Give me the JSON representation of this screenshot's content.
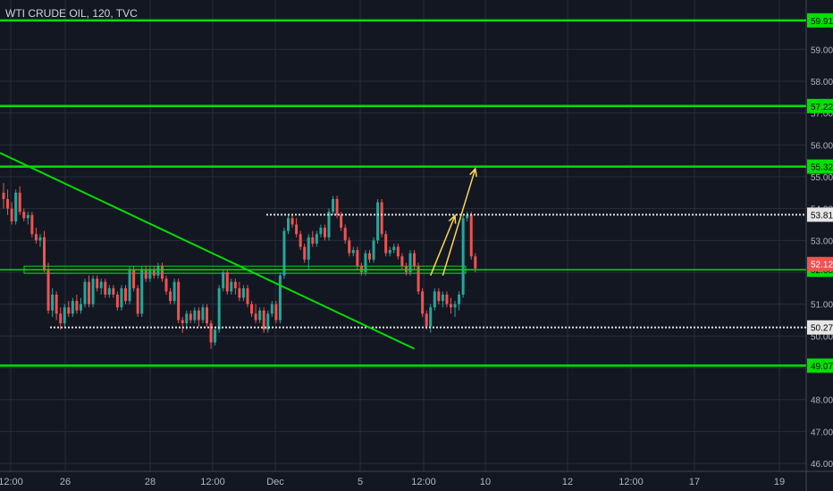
{
  "header": {
    "title": "WTI CRUDE OIL, 120, TVC"
  },
  "colors": {
    "background": "#131722",
    "grid": "#2a2e39",
    "up": "#26a69a",
    "down": "#ef5350",
    "level_line": "#00e000",
    "level_label_bg": "#00e000",
    "dotted_line": "#e0e0e0",
    "current_price_bg": "#ef5350",
    "arrow": "#ffd54f",
    "axis_text": "#b2b5be"
  },
  "chart_data": {
    "type": "candlestick",
    "title": "WTI CRUDE OIL, 120, TVC",
    "ylim": [
      45.75,
      60.55
    ],
    "y_ticks": [
      46.0,
      47.0,
      48.0,
      49.0,
      50.0,
      51.0,
      52.0,
      53.0,
      54.0,
      55.0,
      56.0,
      57.0,
      58.0,
      59.0
    ],
    "x_ticks": [
      "12:00",
      "26",
      "28",
      "12:00",
      "Dec",
      "5",
      "12:00",
      "10",
      "12",
      "12:00",
      "17",
      "19"
    ],
    "horizontal_levels": [
      {
        "value": 59.91,
        "label": "59.91",
        "style": "solid"
      },
      {
        "value": 57.22,
        "label": "57.22",
        "style": "solid"
      },
      {
        "value": 55.32,
        "label": "55.32",
        "style": "solid"
      },
      {
        "value": 49.07,
        "label": "49.07",
        "style": "solid"
      },
      {
        "value": 52.08,
        "label": "52.08",
        "style": "support-zone"
      },
      {
        "value": 53.81,
        "label": "53.81",
        "style": "dotted"
      },
      {
        "value": 50.27,
        "label": "50.27",
        "style": "dotted"
      }
    ],
    "current_price": {
      "value": 52.12,
      "label": "52.12"
    },
    "trendline": {
      "from": {
        "candle": 0,
        "price": 55.75
      },
      "to": {
        "candle": 101,
        "price": 49.6
      }
    },
    "projection_arrows": [
      {
        "from": {
          "candle": 105,
          "price": 51.9
        },
        "to": {
          "candle": 111,
          "price": 53.78
        }
      },
      {
        "from": {
          "candle": 108,
          "price": 51.9
        },
        "to": {
          "candle": 116,
          "price": 55.25
        }
      }
    ],
    "candles": [
      [
        54.5,
        54.8,
        54.0,
        54.3
      ],
      [
        54.3,
        54.6,
        53.8,
        54.0
      ],
      [
        54.0,
        54.2,
        53.5,
        53.6
      ],
      [
        53.6,
        54.6,
        53.5,
        54.5
      ],
      [
        54.5,
        54.7,
        53.8,
        53.9
      ],
      [
        53.9,
        54.0,
        53.6,
        53.7
      ],
      [
        53.7,
        53.9,
        53.5,
        53.8
      ],
      [
        53.8,
        53.9,
        53.1,
        53.2
      ],
      [
        53.2,
        53.4,
        52.9,
        53.0
      ],
      [
        53.0,
        53.2,
        52.8,
        53.1
      ],
      [
        53.1,
        53.3,
        52.0,
        52.1
      ],
      [
        52.1,
        52.3,
        50.7,
        50.8
      ],
      [
        50.8,
        51.5,
        50.6,
        51.3
      ],
      [
        51.3,
        51.4,
        50.5,
        50.7
      ],
      [
        50.7,
        50.9,
        50.2,
        50.4
      ],
      [
        50.4,
        51.0,
        50.3,
        50.9
      ],
      [
        50.9,
        51.1,
        50.6,
        50.7
      ],
      [
        50.7,
        51.2,
        50.6,
        51.1
      ],
      [
        51.1,
        51.3,
        50.7,
        50.8
      ],
      [
        50.8,
        51.2,
        50.7,
        51.0
      ],
      [
        51.0,
        51.8,
        50.9,
        51.7
      ],
      [
        51.7,
        51.9,
        50.9,
        51.0
      ],
      [
        51.0,
        51.9,
        50.9,
        51.8
      ],
      [
        51.8,
        51.9,
        51.4,
        51.5
      ],
      [
        51.5,
        51.8,
        51.3,
        51.7
      ],
      [
        51.7,
        51.8,
        51.2,
        51.3
      ],
      [
        51.3,
        51.6,
        51.2,
        51.5
      ],
      [
        51.5,
        51.6,
        51.2,
        51.3
      ],
      [
        51.3,
        51.4,
        50.8,
        50.9
      ],
      [
        50.9,
        51.6,
        50.8,
        51.5
      ],
      [
        51.5,
        51.6,
        51.0,
        51.1
      ],
      [
        51.1,
        52.2,
        51.0,
        52.1
      ],
      [
        52.1,
        52.2,
        51.4,
        51.5
      ],
      [
        51.5,
        51.6,
        50.6,
        50.7
      ],
      [
        50.7,
        52.2,
        50.6,
        52.1
      ],
      [
        52.1,
        52.2,
        51.7,
        51.8
      ],
      [
        51.8,
        52.2,
        51.7,
        52.1
      ],
      [
        52.1,
        52.2,
        51.8,
        51.9
      ],
      [
        51.9,
        52.3,
        51.8,
        52.2
      ],
      [
        52.2,
        52.3,
        51.7,
        51.8
      ],
      [
        51.8,
        51.9,
        51.3,
        51.4
      ],
      [
        51.4,
        51.5,
        51.0,
        51.1
      ],
      [
        51.1,
        51.8,
        51.0,
        51.7
      ],
      [
        51.7,
        51.8,
        50.4,
        50.5
      ],
      [
        50.5,
        50.6,
        50.1,
        50.4
      ],
      [
        50.4,
        50.8,
        50.2,
        50.7
      ],
      [
        50.7,
        50.8,
        50.4,
        50.5
      ],
      [
        50.5,
        50.9,
        50.4,
        50.8
      ],
      [
        50.8,
        50.9,
        50.3,
        50.5
      ],
      [
        50.5,
        51.0,
        50.4,
        50.9
      ],
      [
        50.9,
        51.0,
        50.3,
        50.4
      ],
      [
        50.4,
        50.5,
        49.6,
        49.8
      ],
      [
        49.8,
        50.3,
        49.7,
        50.2
      ],
      [
        50.2,
        51.6,
        50.1,
        51.5
      ],
      [
        51.5,
        52.1,
        51.4,
        52.0
      ],
      [
        52.0,
        52.1,
        51.3,
        51.4
      ],
      [
        51.4,
        51.8,
        51.3,
        51.7
      ],
      [
        51.7,
        51.8,
        51.3,
        51.5
      ],
      [
        51.5,
        51.7,
        51.1,
        51.2
      ],
      [
        51.2,
        51.6,
        51.1,
        51.5
      ],
      [
        51.5,
        51.6,
        50.9,
        51.0
      ],
      [
        51.0,
        51.1,
        50.6,
        50.7
      ],
      [
        50.7,
        51.0,
        50.4,
        50.5
      ],
      [
        50.5,
        50.9,
        50.4,
        50.8
      ],
      [
        50.8,
        50.9,
        50.1,
        50.2
      ],
      [
        50.2,
        50.8,
        50.1,
        50.7
      ],
      [
        50.7,
        51.1,
        50.6,
        51.0
      ],
      [
        51.0,
        51.1,
        50.4,
        50.5
      ],
      [
        50.5,
        52.0,
        50.4,
        51.9
      ],
      [
        51.9,
        53.4,
        51.8,
        53.3
      ],
      [
        53.3,
        53.8,
        53.2,
        53.7
      ],
      [
        53.7,
        53.8,
        53.4,
        53.5
      ],
      [
        53.5,
        53.7,
        53.1,
        53.2
      ],
      [
        53.2,
        53.3,
        52.7,
        52.8
      ],
      [
        52.8,
        52.9,
        52.3,
        52.4
      ],
      [
        52.4,
        53.2,
        52.1,
        53.1
      ],
      [
        53.1,
        53.3,
        52.8,
        52.9
      ],
      [
        52.9,
        53.3,
        52.8,
        53.2
      ],
      [
        53.2,
        53.5,
        53.1,
        53.4
      ],
      [
        53.4,
        53.5,
        53.0,
        53.1
      ],
      [
        53.1,
        54.0,
        53.0,
        53.9
      ],
      [
        53.9,
        54.4,
        53.8,
        54.3
      ],
      [
        54.3,
        54.4,
        53.7,
        53.8
      ],
      [
        53.8,
        53.9,
        53.3,
        53.4
      ],
      [
        53.4,
        53.5,
        52.9,
        53.0
      ],
      [
        53.0,
        53.1,
        52.5,
        52.6
      ],
      [
        52.6,
        52.8,
        52.5,
        52.7
      ],
      [
        52.7,
        52.8,
        52.1,
        52.2
      ],
      [
        52.2,
        52.3,
        51.9,
        52.0
      ],
      [
        52.0,
        52.7,
        51.9,
        52.6
      ],
      [
        52.6,
        52.7,
        52.3,
        52.4
      ],
      [
        52.4,
        53.1,
        52.3,
        53.0
      ],
      [
        53.0,
        54.3,
        52.9,
        54.2
      ],
      [
        54.2,
        54.3,
        53.1,
        53.2
      ],
      [
        53.2,
        53.3,
        52.5,
        52.6
      ],
      [
        52.6,
        52.8,
        52.5,
        52.7
      ],
      [
        52.7,
        52.9,
        52.6,
        52.8
      ],
      [
        52.8,
        52.9,
        52.4,
        52.5
      ],
      [
        52.5,
        52.6,
        52.1,
        52.2
      ],
      [
        52.2,
        52.3,
        51.9,
        52.0
      ],
      [
        52.0,
        52.7,
        51.9,
        52.6
      ],
      [
        52.6,
        52.7,
        52.1,
        52.2
      ],
      [
        52.2,
        52.3,
        51.3,
        51.4
      ],
      [
        51.4,
        51.5,
        50.6,
        50.7
      ],
      [
        50.7,
        50.8,
        50.2,
        50.3
      ],
      [
        50.3,
        51.0,
        50.1,
        50.9
      ],
      [
        50.9,
        51.5,
        50.8,
        51.4
      ],
      [
        51.4,
        51.5,
        51.0,
        51.1
      ],
      [
        51.1,
        51.4,
        50.9,
        51.3
      ],
      [
        51.3,
        51.4,
        50.9,
        51.0
      ],
      [
        51.0,
        51.2,
        50.7,
        50.9
      ],
      [
        50.9,
        51.1,
        50.6,
        51.0
      ],
      [
        51.0,
        51.4,
        50.8,
        51.3
      ],
      [
        51.3,
        53.8,
        51.2,
        53.7
      ],
      [
        53.7,
        53.9,
        53.6,
        53.8
      ],
      [
        53.8,
        53.9,
        52.4,
        52.5
      ],
      [
        52.5,
        52.6,
        52.0,
        52.12
      ]
    ]
  }
}
